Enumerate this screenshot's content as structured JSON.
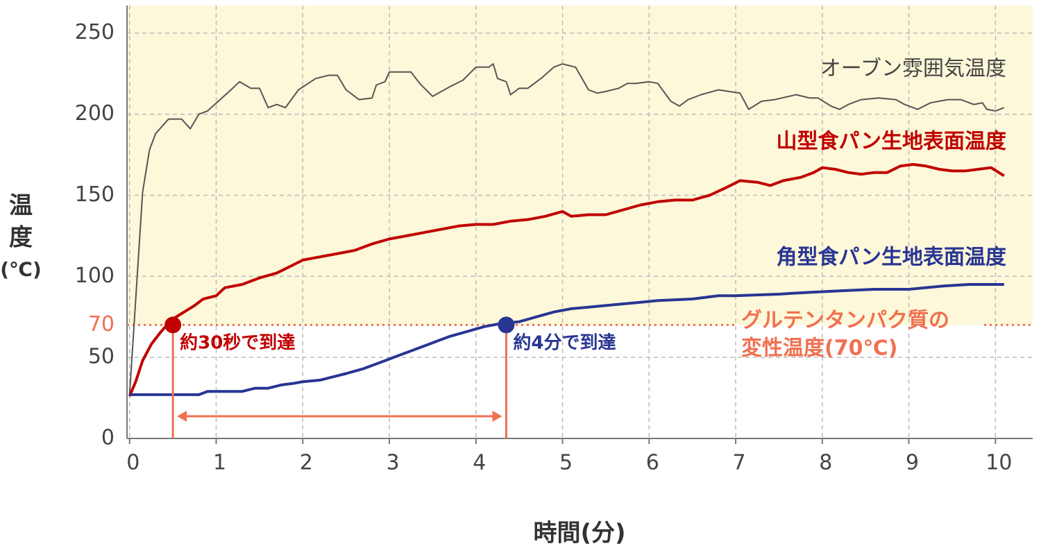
{
  "chart_data": {
    "type": "line",
    "xlabel": "時間(分)",
    "ylabel": [
      "温",
      "度",
      "(℃)"
    ],
    "xlim": [
      -0.03,
      10.43
    ],
    "xticks": [
      0,
      1,
      2,
      3,
      4,
      5,
      6,
      7,
      8,
      9,
      10
    ],
    "ylim": [
      0,
      267
    ],
    "yticks": [
      0,
      50,
      70,
      100,
      150,
      200,
      250
    ],
    "grid": true,
    "threshold": {
      "value": 70,
      "label": [
        "グルテンタンパク質の",
        "変性温度(70℃)"
      ],
      "color": "#f07050",
      "shade_color": "#fdf8d9"
    },
    "series": [
      {
        "name": "オーブン雰囲気温度",
        "color": "#555555",
        "x": [
          0,
          0.15,
          0.23,
          0.3,
          0.45,
          0.6,
          0.7,
          0.8,
          0.9,
          1.15,
          1.27,
          1.4,
          1.5,
          1.6,
          1.7,
          1.8,
          1.95,
          2.15,
          2.3,
          2.4,
          2.5,
          2.65,
          2.8,
          2.85,
          2.95,
          3.0,
          3.1,
          3.25,
          3.35,
          3.5,
          3.6,
          3.7,
          3.85,
          4.0,
          4.15,
          4.2,
          4.25,
          4.35,
          4.4,
          4.5,
          4.6,
          4.75,
          4.9,
          5.0,
          5.15,
          5.3,
          5.4,
          5.5,
          5.65,
          5.75,
          5.85,
          6.0,
          6.1,
          6.25,
          6.35,
          6.45,
          6.6,
          6.8,
          7.05,
          7.15,
          7.3,
          7.45,
          7.7,
          7.85,
          7.95,
          8.1,
          8.2,
          8.3,
          8.45,
          8.65,
          8.85,
          8.95,
          9.1,
          9.25,
          9.45,
          9.6,
          9.75,
          9.85,
          9.9,
          10.0,
          10.1
        ],
        "values": [
          27,
          152,
          178,
          188,
          197,
          197,
          191,
          200,
          202,
          214,
          220,
          216,
          216,
          204,
          206,
          204,
          215,
          222,
          224,
          224,
          215,
          209,
          210,
          218,
          220,
          226,
          226,
          226,
          219,
          211,
          214,
          217,
          221,
          229,
          229,
          231,
          222,
          220,
          212,
          216,
          216,
          222,
          229,
          231,
          229,
          215,
          213,
          214,
          216,
          219,
          219,
          220,
          219,
          208,
          205,
          209,
          212,
          215,
          213,
          203,
          208,
          209,
          212,
          210,
          210,
          205,
          203,
          206,
          209,
          210,
          209,
          206,
          203,
          207,
          209,
          209,
          206,
          207,
          203,
          202,
          204
        ]
      },
      {
        "name": "山型食パン生地表面温度",
        "color": "#c00000",
        "x": [
          0,
          0.07,
          0.15,
          0.25,
          0.35,
          0.48,
          0.6,
          0.75,
          0.85,
          1.0,
          1.1,
          1.3,
          1.5,
          1.7,
          1.85,
          2.0,
          2.2,
          2.4,
          2.6,
          2.8,
          3.0,
          3.2,
          3.4,
          3.6,
          3.8,
          4.0,
          4.2,
          4.4,
          4.6,
          4.8,
          5.0,
          5.1,
          5.3,
          5.5,
          5.7,
          5.9,
          6.1,
          6.3,
          6.5,
          6.7,
          6.9,
          7.05,
          7.25,
          7.4,
          7.55,
          7.75,
          7.9,
          8.0,
          8.15,
          8.3,
          8.45,
          8.6,
          8.75,
          8.9,
          9.05,
          9.2,
          9.35,
          9.5,
          9.65,
          9.8,
          9.95,
          10.1
        ],
        "values": [
          26,
          35,
          48,
          58,
          65,
          73,
          77,
          82,
          86,
          88,
          93,
          95,
          99,
          102,
          106,
          110,
          112,
          114,
          116,
          120,
          123,
          125,
          127,
          129,
          131,
          132,
          132,
          134,
          135,
          137,
          140,
          137,
          138,
          138,
          141,
          144,
          146,
          147,
          147,
          150,
          155,
          159,
          158,
          156,
          159,
          161,
          164,
          167,
          166,
          164,
          163,
          164,
          164,
          168,
          169,
          168,
          166,
          165,
          165,
          166,
          167,
          162
        ]
      },
      {
        "name": "角型食パン生地表面温度",
        "color": "#283593",
        "x": [
          0,
          0.8,
          0.9,
          1.3,
          1.45,
          1.6,
          1.75,
          1.9,
          2.0,
          2.2,
          2.35,
          2.5,
          2.7,
          2.9,
          3.1,
          3.3,
          3.5,
          3.7,
          3.9,
          4.1,
          4.3,
          4.5,
          4.7,
          4.9,
          5.1,
          5.3,
          5.5,
          5.7,
          5.9,
          6.1,
          6.5,
          6.8,
          7.0,
          7.5,
          7.8,
          8.2,
          8.6,
          9.0,
          9.4,
          9.7,
          10.1
        ],
        "values": [
          27,
          27,
          29,
          29,
          31,
          31,
          33,
          34,
          35,
          36,
          38,
          40,
          43,
          47,
          51,
          55,
          59,
          63,
          66,
          69,
          71,
          72,
          75,
          78,
          80,
          81,
          82,
          83,
          84,
          85,
          86,
          88,
          88,
          89,
          90,
          91,
          92,
          92,
          94,
          95,
          95
        ]
      }
    ],
    "annotations": [
      {
        "x": 0.5,
        "y": 70,
        "label": "約30秒で到達",
        "color": "#c00000"
      },
      {
        "x": 4.35,
        "y": 70,
        "label": "約4分で到達",
        "color": "#283593"
      }
    ]
  }
}
